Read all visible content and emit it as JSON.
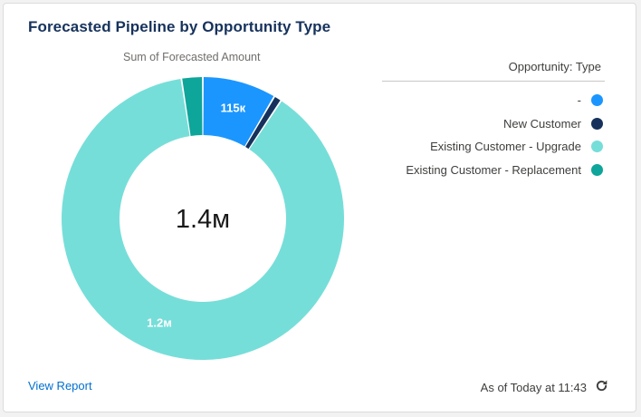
{
  "card": {
    "title": "Forecasted Pipeline by Opportunity Type",
    "view_report_label": "View Report",
    "timestamp": "As of Today at 11:43",
    "refresh_icon": "refresh-icon"
  },
  "chart_data": {
    "type": "pie",
    "variant": "donut",
    "title": "Sum of Forecasted Amount",
    "center_label": "1.4м",
    "legend_title": "Opportunity: Type",
    "legend_position": "right",
    "unit": "",
    "slices": [
      {
        "name": "-",
        "value": 115000,
        "label": "115к",
        "color": "#1b96ff"
      },
      {
        "name": "New Customer",
        "value": 12000,
        "label": "",
        "color": "#16325c"
      },
      {
        "name": "Existing Customer - Upgrade",
        "value": 1200000,
        "label": "1.2м",
        "color": "#76ded9"
      },
      {
        "name": "Existing Customer - Replacement",
        "value": 33000,
        "label": "",
        "color": "#0ea59a"
      }
    ]
  }
}
